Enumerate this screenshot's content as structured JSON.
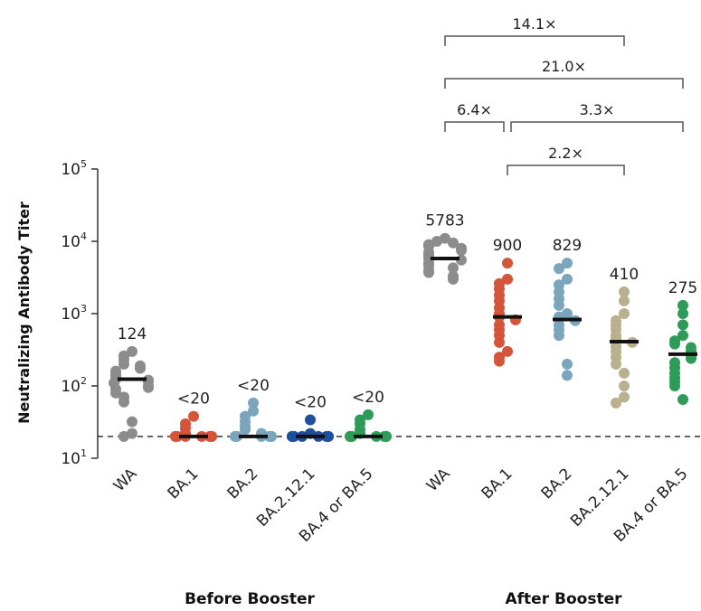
{
  "chart_data": {
    "type": "scatter",
    "yscale": "log",
    "ylim": [
      10,
      100000
    ],
    "ylabel": "Neutralizing Antibody Titer",
    "yticks": [
      {
        "base": "10",
        "exp": "1"
      },
      {
        "base": "10",
        "exp": "2"
      },
      {
        "base": "10",
        "exp": "3"
      },
      {
        "base": "10",
        "exp": "4"
      },
      {
        "base": "10",
        "exp": "5"
      }
    ],
    "detection_limit": 20,
    "groups": [
      {
        "name": "Before Booster"
      },
      {
        "name": "After Booster"
      }
    ],
    "series": [
      {
        "group": 0,
        "name": "WA",
        "color": "#8c8c8c",
        "median": 124,
        "median_label": "124",
        "points": [
          300,
          260,
          230,
          200,
          190,
          175,
          160,
          150,
          140,
          130,
          125,
          120,
          115,
          110,
          100,
          95,
          90,
          80,
          70,
          60,
          32,
          22,
          20
        ]
      },
      {
        "group": 0,
        "name": "BA.1",
        "color": "#d4553a",
        "median": 20,
        "median_label": "<20",
        "points": [
          38,
          30,
          26,
          22,
          20,
          20,
          20,
          20,
          20,
          20,
          20,
          20
        ]
      },
      {
        "group": 0,
        "name": "BA.2",
        "color": "#7aa5bd",
        "median": 20,
        "median_label": "<20",
        "points": [
          58,
          45,
          38,
          32,
          28,
          25,
          22,
          20,
          20,
          20,
          20,
          20,
          20,
          20
        ]
      },
      {
        "group": 0,
        "name": "BA.2.12.1",
        "color": "#1f4e9c",
        "median": 20,
        "median_label": "<20",
        "points": [
          34,
          22,
          20,
          20,
          20,
          20,
          20,
          20,
          20,
          20,
          20
        ]
      },
      {
        "group": 0,
        "name": "BA.4 or BA.5",
        "color": "#2e9b58",
        "median": 20,
        "median_label": "<20",
        "points": [
          40,
          34,
          30,
          25,
          22,
          20,
          20,
          20,
          20,
          20,
          20,
          20
        ]
      },
      {
        "group": 1,
        "name": "WA",
        "color": "#8c8c8c",
        "median": 5783,
        "median_label": "5783",
        "points": [
          11000,
          10000,
          9500,
          9000,
          8500,
          8000,
          7500,
          7000,
          6500,
          6000,
          5800,
          5500,
          5000,
          4700,
          4300,
          4000,
          3700,
          3300,
          3000
        ]
      },
      {
        "group": 1,
        "name": "BA.1",
        "color": "#d4553a",
        "median": 900,
        "median_label": "900",
        "points": [
          5000,
          3000,
          2600,
          2200,
          1800,
          1500,
          1200,
          1000,
          900,
          820,
          700,
          600,
          500,
          400,
          300,
          250,
          220
        ]
      },
      {
        "group": 1,
        "name": "BA.2",
        "color": "#7aa5bd",
        "median": 829,
        "median_label": "829",
        "points": [
          5000,
          4200,
          3000,
          2500,
          2000,
          1600,
          1300,
          1000,
          900,
          800,
          700,
          600,
          500,
          200,
          140
        ]
      },
      {
        "group": 1,
        "name": "BA.2.12.1",
        "color": "#b9b08e",
        "median": 410,
        "median_label": "410",
        "points": [
          2000,
          1500,
          1000,
          800,
          700,
          600,
          500,
          450,
          400,
          350,
          300,
          250,
          200,
          150,
          100,
          70,
          58
        ]
      },
      {
        "group": 1,
        "name": "BA.4 or BA.5",
        "color": "#2e9b58",
        "median": 275,
        "median_label": "275",
        "points": [
          1300,
          1000,
          700,
          500,
          420,
          380,
          340,
          300,
          270,
          240,
          210,
          180,
          150,
          130,
          115,
          100,
          65
        ]
      }
    ],
    "comparisons": [
      {
        "from": 5,
        "to": 8,
        "label": "14.1×",
        "level": 0
      },
      {
        "from": 5,
        "to": 9,
        "label": "21.0×",
        "level": 1
      },
      {
        "from": 5,
        "to": 6,
        "label": "6.4×",
        "level": 2
      },
      {
        "from": 6,
        "to": 9,
        "label": "3.3×",
        "level": 2
      },
      {
        "from": 6,
        "to": 8,
        "label": "2.2×",
        "level": 3
      }
    ]
  }
}
